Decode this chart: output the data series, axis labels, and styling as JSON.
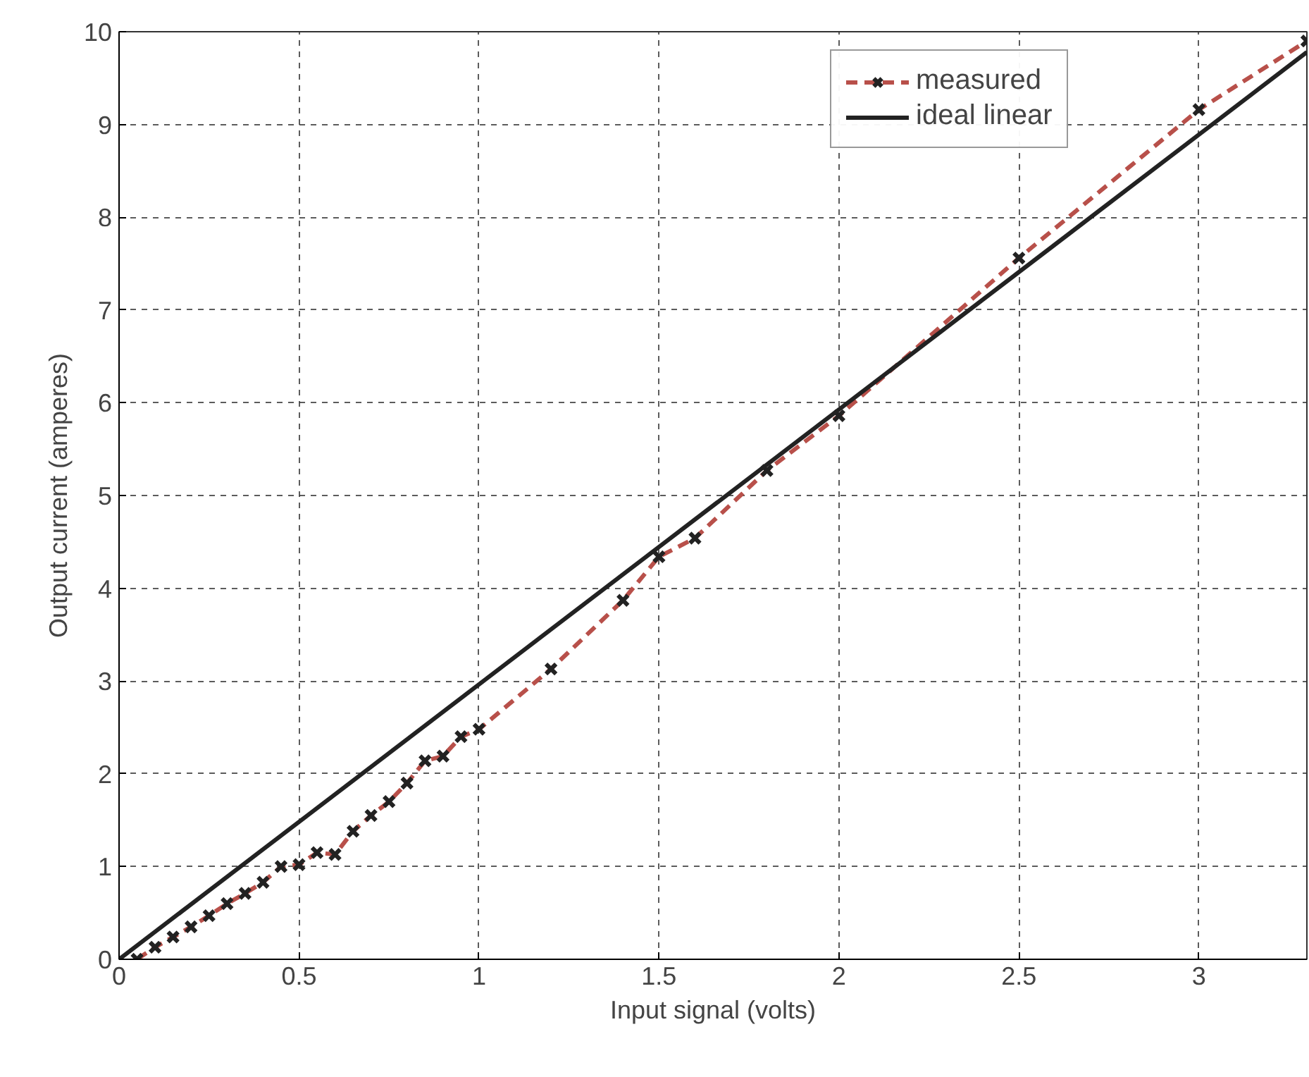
{
  "chart_data": {
    "type": "line",
    "xlabel": "Input signal (volts)",
    "ylabel": "Output current (amperes)",
    "xlim": [
      0,
      3.3
    ],
    "ylim": [
      0,
      10
    ],
    "xticks": [
      0,
      0.5,
      1,
      1.5,
      2,
      2.5,
      3
    ],
    "yticks": [
      0,
      1,
      2,
      3,
      4,
      5,
      6,
      7,
      8,
      9,
      10
    ],
    "grid": true,
    "legend": "top right",
    "series": [
      {
        "name": "measured",
        "color": "#b8504a",
        "marker": "cross",
        "line_style": "dashed",
        "x": [
          0.05,
          0.1,
          0.15,
          0.2,
          0.25,
          0.3,
          0.35,
          0.4,
          0.45,
          0.5,
          0.55,
          0.6,
          0.65,
          0.7,
          0.75,
          0.8,
          0.85,
          0.9,
          0.95,
          1.0,
          1.2,
          1.4,
          1.5,
          1.6,
          1.8,
          2.0,
          2.5,
          3.0,
          3.3
        ],
        "values": [
          0.0,
          0.13,
          0.24,
          0.35,
          0.47,
          0.6,
          0.71,
          0.83,
          1.0,
          1.02,
          1.15,
          1.13,
          1.38,
          1.55,
          1.7,
          1.9,
          2.14,
          2.19,
          2.4,
          2.48,
          3.13,
          3.87,
          4.34,
          4.54,
          5.27,
          5.86,
          7.56,
          9.16,
          9.9
        ]
      },
      {
        "name": "ideal linear",
        "color": "#222222",
        "marker": "none",
        "line_style": "solid",
        "x": [
          0,
          3.3
        ],
        "values": [
          0,
          9.78
        ]
      }
    ]
  }
}
